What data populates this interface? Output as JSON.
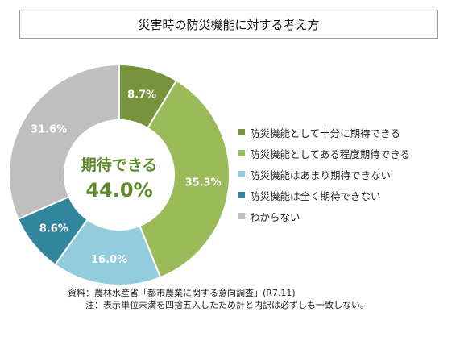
{
  "title": "災害時の防災機能に対する考え方",
  "chart_data": {
    "type": "pie",
    "variant": "donut",
    "title": "災害時の防災機能に対する考え方",
    "categories": [
      "防災機能として十分に期待できる",
      "防災機能としてある程度期待できる",
      "防災機能はあまり期待できない",
      "防災機能は全く期待できない",
      "わからない"
    ],
    "values": [
      8.7,
      35.3,
      16.0,
      8.6,
      31.6
    ],
    "value_labels": [
      "8.7%",
      "35.3%",
      "16.0%",
      "8.6%",
      "31.6%"
    ],
    "colors": [
      "#77933c",
      "#9bbb59",
      "#93cddd",
      "#31859c",
      "#bfbfbf"
    ],
    "center_label": "期待できる",
    "center_value": "44.0%",
    "legend_position": "right"
  },
  "notes": {
    "source": "資料：農林水産省「都市農業に関する意向調査」(R7.11)",
    "note": "注：表示単位未満を四捨五入したため計と内訳は必ずしも一致しない。"
  }
}
